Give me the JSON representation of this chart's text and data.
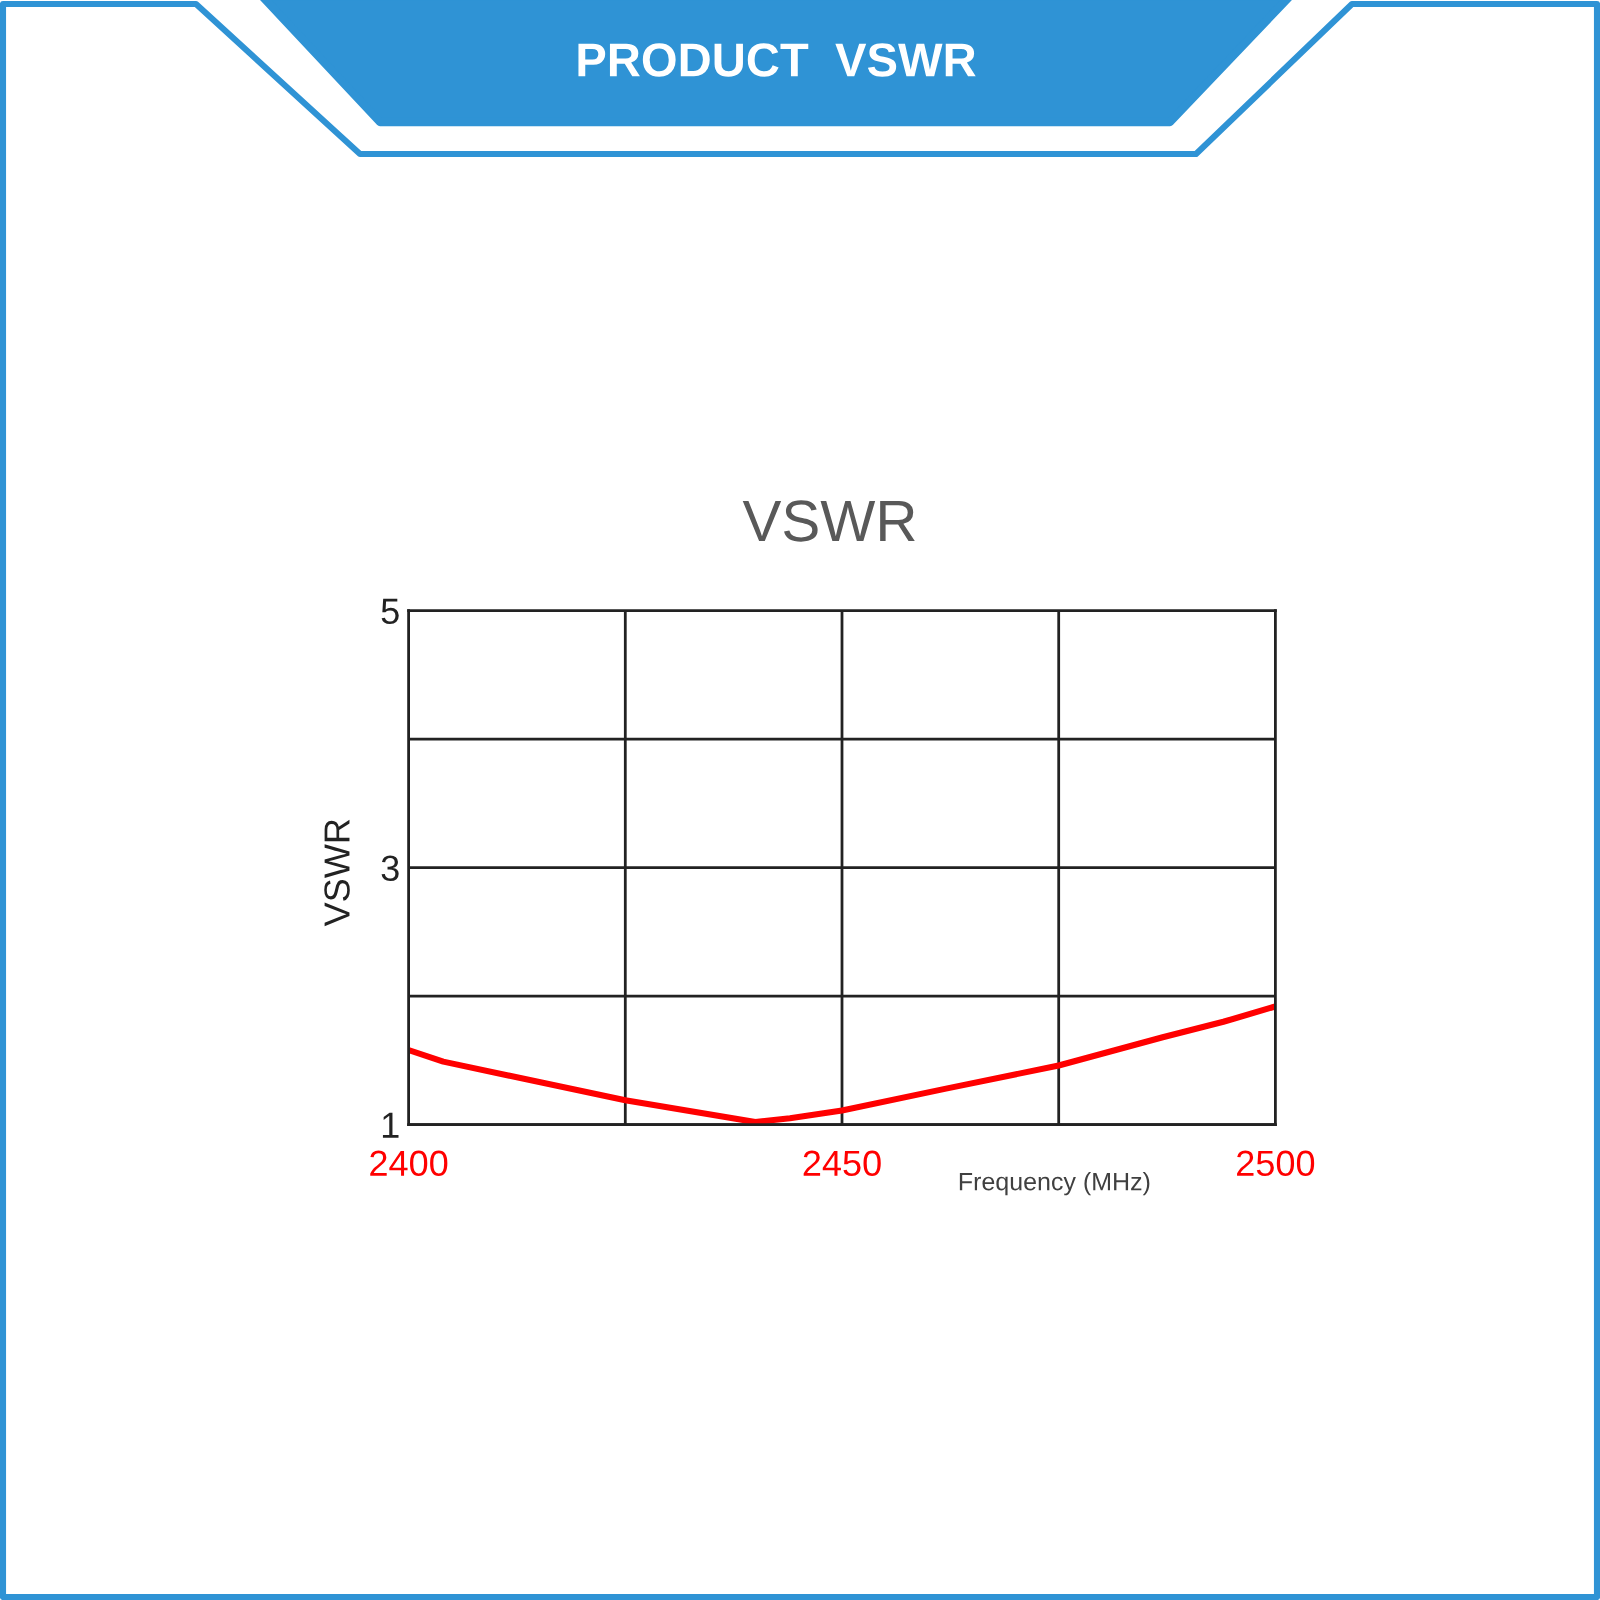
{
  "chart_data": {
    "type": "line",
    "title": "PRODUCT  VSWR",
    "subtitle": "VSWR",
    "xlabel": "Frequency (MHz)",
    "ylabel": "VSWR",
    "x": [
      2400,
      2404,
      2425,
      2440,
      2444,
      2450,
      2462,
      2475,
      2487,
      2494,
      2500
    ],
    "series": [
      {
        "color": "#ff0000",
        "values": [
          1.58,
          1.49,
          1.19,
          1.02,
          1.05,
          1.11,
          1.28,
          1.46,
          1.68,
          1.8,
          1.92
        ]
      }
    ],
    "xlim": [
      2400,
      2500
    ],
    "xticks": [
      2400,
      {
        "value": 2425,
        "label": null
      },
      2450,
      {
        "value": 2475,
        "label": null
      },
      2500
    ],
    "ylim": [
      1,
      5
    ],
    "yticks": [
      1,
      {
        "value": 2,
        "label": null
      },
      3,
      {
        "value": 4,
        "label": null
      },
      5
    ],
    "grid": true
  }
}
